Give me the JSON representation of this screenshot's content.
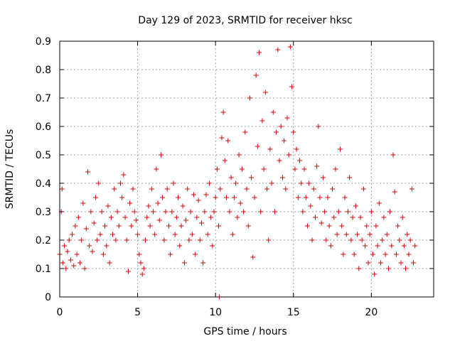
{
  "chart_data": {
    "type": "scatter",
    "title": "Day 129 of 2023, SRMTID for receiver hksc",
    "xlabel": "GPS time / hours",
    "ylabel": "SRMTID / TECUs",
    "xlim": [
      0,
      24
    ],
    "ylim": [
      0,
      0.9
    ],
    "x_ticks": [
      0,
      5,
      10,
      15,
      20
    ],
    "y_ticks": [
      0,
      0.1,
      0.2,
      0.3,
      0.4,
      0.5,
      0.6,
      0.7,
      0.8,
      0.9
    ],
    "x_tick_labels": [
      "0",
      "5",
      "10",
      "15",
      "20"
    ],
    "y_tick_labels": [
      "0",
      "0.1",
      "0.2",
      "0.3",
      "0.4",
      "0.5",
      "0.6",
      "0.7",
      "0.8",
      "0.9"
    ],
    "grid": true,
    "marker": "+",
    "color": "#e00000",
    "series": [
      {
        "name": "SRMTID",
        "points": [
          [
            0.0,
            0.15
          ],
          [
            0.1,
            0.3
          ],
          [
            0.15,
            0.38
          ],
          [
            0.2,
            0.12
          ],
          [
            0.3,
            0.18
          ],
          [
            0.4,
            0.1
          ],
          [
            0.5,
            0.16
          ],
          [
            0.6,
            0.2
          ],
          [
            0.7,
            0.13
          ],
          [
            0.8,
            0.22
          ],
          [
            0.9,
            0.11
          ],
          [
            1.0,
            0.25
          ],
          [
            1.1,
            0.15
          ],
          [
            1.2,
            0.28
          ],
          [
            1.3,
            0.12
          ],
          [
            1.4,
            0.2
          ],
          [
            1.5,
            0.33
          ],
          [
            1.6,
            0.1
          ],
          [
            1.7,
            0.24
          ],
          [
            1.8,
            0.44
          ],
          [
            1.9,
            0.18
          ],
          [
            2.0,
            0.3
          ],
          [
            2.1,
            0.16
          ],
          [
            2.2,
            0.26
          ],
          [
            2.3,
            0.35
          ],
          [
            2.4,
            0.2
          ],
          [
            2.5,
            0.4
          ],
          [
            2.6,
            0.22
          ],
          [
            2.7,
            0.3
          ],
          [
            2.8,
            0.15
          ],
          [
            2.9,
            0.25
          ],
          [
            3.0,
            0.18
          ],
          [
            3.1,
            0.32
          ],
          [
            3.2,
            0.12
          ],
          [
            3.3,
            0.28
          ],
          [
            3.4,
            0.22
          ],
          [
            3.5,
            0.38
          ],
          [
            3.6,
            0.2
          ],
          [
            3.7,
            0.3
          ],
          [
            3.8,
            0.25
          ],
          [
            3.9,
            0.4
          ],
          [
            4.0,
            0.35
          ],
          [
            4.1,
            0.43
          ],
          [
            4.2,
            0.28
          ],
          [
            4.3,
            0.2
          ],
          [
            4.4,
            0.09
          ],
          [
            4.5,
            0.33
          ],
          [
            4.6,
            0.25
          ],
          [
            4.7,
            0.38
          ],
          [
            4.8,
            0.3
          ],
          [
            4.9,
            0.27
          ],
          [
            5.0,
            0.22
          ],
          [
            5.1,
            0.15
          ],
          [
            5.2,
            0.12
          ],
          [
            5.3,
            0.08
          ],
          [
            5.4,
            0.1
          ],
          [
            5.5,
            0.2
          ],
          [
            5.6,
            0.28
          ],
          [
            5.7,
            0.32
          ],
          [
            5.8,
            0.25
          ],
          [
            5.9,
            0.38
          ],
          [
            6.0,
            0.3
          ],
          [
            6.1,
            0.22
          ],
          [
            6.2,
            0.45
          ],
          [
            6.3,
            0.33
          ],
          [
            6.4,
            0.27
          ],
          [
            6.5,
            0.5
          ],
          [
            6.6,
            0.35
          ],
          [
            6.7,
            0.2
          ],
          [
            6.8,
            0.3
          ],
          [
            6.9,
            0.38
          ],
          [
            7.0,
            0.25
          ],
          [
            7.1,
            0.15
          ],
          [
            7.2,
            0.3
          ],
          [
            7.3,
            0.4
          ],
          [
            7.4,
            0.22
          ],
          [
            7.5,
            0.28
          ],
          [
            7.6,
            0.35
          ],
          [
            7.7,
            0.18
          ],
          [
            7.8,
            0.25
          ],
          [
            7.9,
            0.32
          ],
          [
            8.0,
            0.12
          ],
          [
            8.1,
            0.27
          ],
          [
            8.2,
            0.38
          ],
          [
            8.3,
            0.2
          ],
          [
            8.4,
            0.3
          ],
          [
            8.5,
            0.22
          ],
          [
            8.6,
            0.36
          ],
          [
            8.7,
            0.15
          ],
          [
            8.8,
            0.28
          ],
          [
            8.9,
            0.34
          ],
          [
            9.0,
            0.2
          ],
          [
            9.1,
            0.26
          ],
          [
            9.2,
            0.12
          ],
          [
            9.3,
            0.3
          ],
          [
            9.4,
            0.36
          ],
          [
            9.5,
            0.22
          ],
          [
            9.6,
            0.4
          ],
          [
            9.7,
            0.28
          ],
          [
            9.8,
            0.18
          ],
          [
            9.9,
            0.3
          ],
          [
            10.0,
            0.35
          ],
          [
            10.1,
            0.45
          ],
          [
            10.2,
            0.25
          ],
          [
            10.3,
            0.38
          ],
          [
            10.4,
            0.56
          ],
          [
            10.5,
            0.65
          ],
          [
            10.6,
            0.48
          ],
          [
            10.7,
            0.35
          ],
          [
            10.8,
            0.55
          ],
          [
            10.9,
            0.3
          ],
          [
            11.0,
            0.42
          ],
          [
            11.1,
            0.22
          ],
          [
            11.2,
            0.35
          ],
          [
            11.3,
            0.4
          ],
          [
            11.4,
            0.28
          ],
          [
            11.5,
            0.5
          ],
          [
            11.6,
            0.33
          ],
          [
            11.7,
            0.45
          ],
          [
            11.8,
            0.3
          ],
          [
            11.9,
            0.58
          ],
          [
            12.0,
            0.38
          ],
          [
            12.1,
            0.25
          ],
          [
            12.2,
            0.7
          ],
          [
            12.3,
            0.42
          ],
          [
            12.4,
            0.14
          ],
          [
            12.5,
            0.35
          ],
          [
            12.6,
            0.78
          ],
          [
            12.7,
            0.53
          ],
          [
            12.8,
            0.86
          ],
          [
            12.9,
            0.3
          ],
          [
            13.0,
            0.62
          ],
          [
            13.1,
            0.45
          ],
          [
            13.2,
            0.72
          ],
          [
            13.3,
            0.38
          ],
          [
            13.4,
            0.2
          ],
          [
            13.5,
            0.52
          ],
          [
            13.6,
            0.4
          ],
          [
            13.7,
            0.65
          ],
          [
            13.8,
            0.3
          ],
          [
            13.9,
            0.58
          ],
          [
            14.0,
            0.87
          ],
          [
            14.1,
            0.48
          ],
          [
            14.2,
            0.6
          ],
          [
            14.3,
            0.42
          ],
          [
            14.4,
            0.55
          ],
          [
            14.5,
            0.38
          ],
          [
            14.6,
            0.63
          ],
          [
            14.7,
            0.5
          ],
          [
            14.8,
            0.88
          ],
          [
            14.9,
            0.74
          ],
          [
            15.0,
            0.58
          ],
          [
            15.1,
            0.45
          ],
          [
            15.2,
            0.52
          ],
          [
            15.3,
            0.35
          ],
          [
            15.4,
            0.48
          ],
          [
            15.5,
            0.4
          ],
          [
            15.6,
            0.3
          ],
          [
            15.7,
            0.45
          ],
          [
            15.8,
            0.35
          ],
          [
            15.9,
            0.25
          ],
          [
            16.0,
            0.4
          ],
          [
            16.1,
            0.32
          ],
          [
            16.2,
            0.2
          ],
          [
            16.3,
            0.38
          ],
          [
            16.4,
            0.28
          ],
          [
            16.5,
            0.46
          ],
          [
            16.6,
            0.6
          ],
          [
            16.7,
            0.35
          ],
          [
            16.8,
            0.26
          ],
          [
            16.9,
            0.42
          ],
          [
            17.0,
            0.3
          ],
          [
            17.1,
            0.2
          ],
          [
            17.2,
            0.35
          ],
          [
            17.3,
            0.25
          ],
          [
            17.4,
            0.18
          ],
          [
            17.5,
            0.38
          ],
          [
            17.6,
            0.28
          ],
          [
            17.7,
            0.45
          ],
          [
            17.8,
            0.22
          ],
          [
            17.9,
            0.3
          ],
          [
            18.0,
            0.52
          ],
          [
            18.1,
            0.25
          ],
          [
            18.2,
            0.15
          ],
          [
            18.3,
            0.35
          ],
          [
            18.4,
            0.22
          ],
          [
            18.5,
            0.3
          ],
          [
            18.6,
            0.42
          ],
          [
            18.7,
            0.2
          ],
          [
            18.8,
            0.28
          ],
          [
            18.9,
            0.15
          ],
          [
            19.0,
            0.32
          ],
          [
            19.1,
            0.22
          ],
          [
            19.2,
            0.1
          ],
          [
            19.3,
            0.28
          ],
          [
            19.4,
            0.2
          ],
          [
            19.5,
            0.38
          ],
          [
            19.6,
            0.18
          ],
          [
            19.7,
            0.25
          ],
          [
            19.8,
            0.12
          ],
          [
            19.9,
            0.22
          ],
          [
            20.0,
            0.3
          ],
          [
            20.1,
            0.15
          ],
          [
            20.2,
            0.08
          ],
          [
            20.3,
            0.25
          ],
          [
            20.4,
            0.18
          ],
          [
            20.5,
            0.33
          ],
          [
            20.6,
            0.12
          ],
          [
            20.7,
            0.2
          ],
          [
            20.8,
            0.28
          ],
          [
            20.9,
            0.15
          ],
          [
            21.0,
            0.22
          ],
          [
            21.1,
            0.1
          ],
          [
            21.2,
            0.3
          ],
          [
            21.3,
            0.18
          ],
          [
            21.4,
            0.5
          ],
          [
            21.5,
            0.37
          ],
          [
            21.6,
            0.15
          ],
          [
            21.7,
            0.25
          ],
          [
            21.8,
            0.2
          ],
          [
            21.9,
            0.12
          ],
          [
            22.0,
            0.28
          ],
          [
            22.1,
            0.18
          ],
          [
            22.2,
            0.1
          ],
          [
            22.3,
            0.22
          ],
          [
            22.4,
            0.15
          ],
          [
            22.5,
            0.2
          ],
          [
            22.6,
            0.38
          ],
          [
            22.7,
            0.12
          ],
          [
            22.8,
            0.18
          ],
          [
            10.25,
            0.0
          ]
        ]
      }
    ]
  }
}
